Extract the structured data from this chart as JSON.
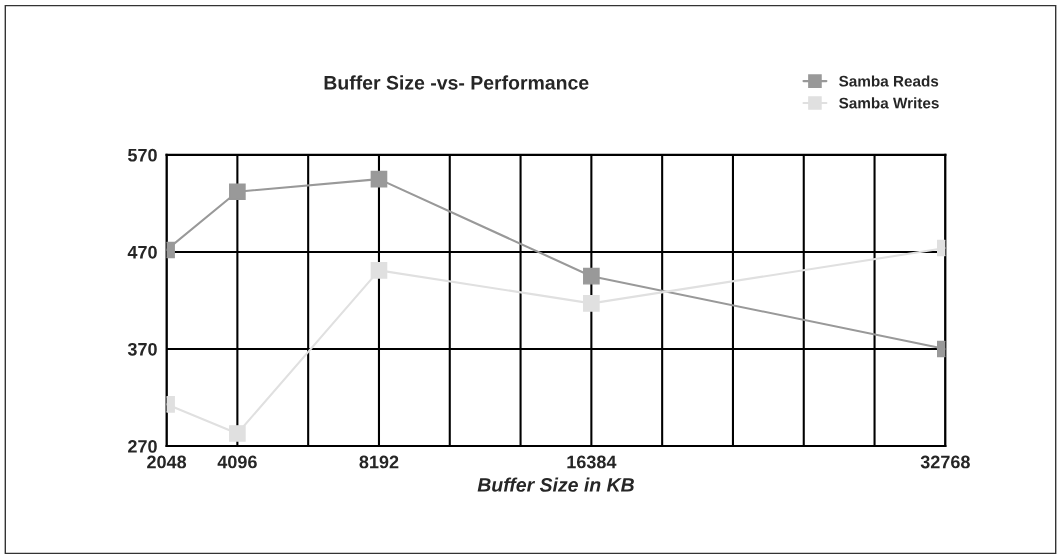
{
  "chart_data": {
    "type": "line",
    "title": "Buffer Size -vs- Performance",
    "xlabel": "Buffer Size in KB",
    "categories": [
      "2048",
      "4096",
      null,
      "8192",
      null,
      null,
      "16384",
      null,
      null,
      null,
      null,
      "32768"
    ],
    "series": [
      {
        "name": "Samba Reads",
        "color": "#999999",
        "values": [
          472,
          532,
          null,
          545,
          null,
          null,
          445,
          null,
          null,
          null,
          null,
          370
        ]
      },
      {
        "name": "Samba Writes",
        "color": "#e0e0e0",
        "values": [
          313,
          283,
          null,
          451,
          null,
          null,
          417,
          null,
          null,
          null,
          null,
          474
        ]
      }
    ],
    "ylim": [
      270,
      570
    ],
    "yticks": [
      270,
      370,
      470,
      570
    ],
    "grid": true,
    "legend": "top right",
    "marker": "square",
    "line_style": "solid"
  }
}
